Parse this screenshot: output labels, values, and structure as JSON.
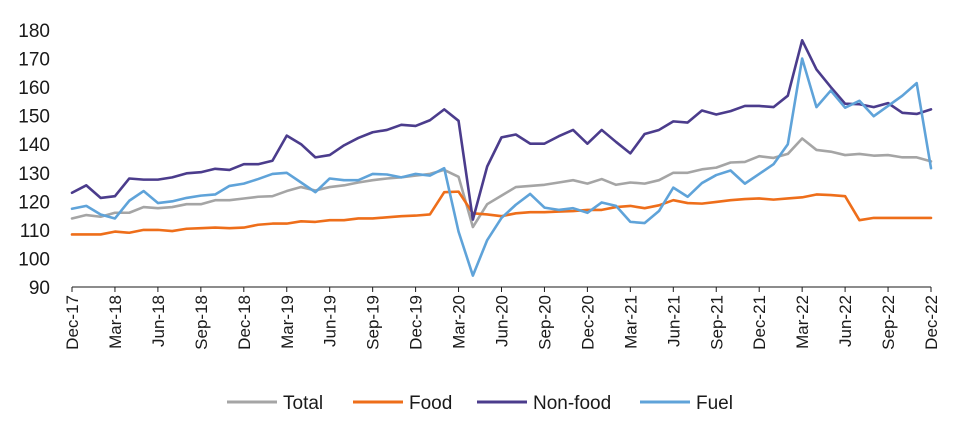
{
  "chart_data": {
    "type": "line",
    "title": "",
    "xlabel": "",
    "ylabel": "",
    "ylim": [
      90,
      180
    ],
    "yticks": [
      90,
      100,
      110,
      120,
      130,
      140,
      150,
      160,
      170,
      180
    ],
    "grid": false,
    "legend_position": "bottom",
    "x": [
      "Dec-17",
      "Jan-18",
      "Feb-18",
      "Mar-18",
      "Apr-18",
      "May-18",
      "Jun-18",
      "Jul-18",
      "Aug-18",
      "Sep-18",
      "Oct-18",
      "Nov-18",
      "Dec-18",
      "Jan-19",
      "Feb-19",
      "Mar-19",
      "Apr-19",
      "May-19",
      "Jun-19",
      "Jul-19",
      "Aug-19",
      "Sep-19",
      "Oct-19",
      "Nov-19",
      "Dec-19",
      "Jan-20",
      "Feb-20",
      "Mar-20",
      "Apr-20",
      "May-20",
      "Jun-20",
      "Jul-20",
      "Aug-20",
      "Sep-20",
      "Oct-20",
      "Nov-20",
      "Dec-20",
      "Jan-21",
      "Feb-21",
      "Mar-21",
      "Apr-21",
      "May-21",
      "Jun-21",
      "Jul-21",
      "Aug-21",
      "Sep-21",
      "Oct-21",
      "Nov-21",
      "Dec-21",
      "Jan-22",
      "Feb-22",
      "Mar-22",
      "Apr-22",
      "May-22",
      "Jun-22",
      "Jul-22",
      "Aug-22",
      "Sep-22",
      "Oct-22",
      "Nov-22",
      "Dec-22"
    ],
    "x_tick_labels": [
      "Dec-17",
      "Mar-18",
      "Jun-18",
      "Sep-18",
      "Dec-18",
      "Mar-19",
      "Jun-19",
      "Sep-19",
      "Dec-19",
      "Mar-20",
      "Jun-20",
      "Sep-20",
      "Dec-20",
      "Mar-21",
      "Jun-21",
      "Sep-21",
      "Dec-21",
      "Mar-22",
      "Jun-22",
      "Sep-22",
      "Dec-22"
    ],
    "series": [
      {
        "name": "Total",
        "color": "#a5a5a5",
        "values": [
          114,
          115.2,
          114.6,
          116,
          116,
          118,
          117.6,
          118,
          119,
          119,
          120.4,
          120.4,
          121,
          121.6,
          121.8,
          123.6,
          125,
          123.8,
          125,
          125.6,
          126.6,
          127.4,
          128,
          128.4,
          129,
          129.6,
          131,
          128.6,
          111,
          119,
          122,
          125,
          125.4,
          125.8,
          126.6,
          127.4,
          126.2,
          127.8,
          125.8,
          126.6,
          126.2,
          127.4,
          130,
          130,
          131.2,
          131.8,
          133.6,
          133.8,
          135.8,
          135.2,
          136.6,
          142,
          138,
          137.4,
          136.2,
          136.6,
          136,
          136.2,
          135.4,
          135.4,
          134
        ]
      },
      {
        "name": "Food",
        "color": "#ee6e1a",
        "values": [
          108.4,
          108.4,
          108.4,
          109.4,
          109,
          110,
          110,
          109.6,
          110.4,
          110.6,
          110.8,
          110.6,
          110.8,
          111.8,
          112.2,
          112.2,
          113,
          112.8,
          113.4,
          113.4,
          114,
          114,
          114.4,
          114.8,
          115,
          115.4,
          123.2,
          123.4,
          115.8,
          115.4,
          114.8,
          115.8,
          116.2,
          116.2,
          116.4,
          116.6,
          117,
          117,
          118,
          118.4,
          117.6,
          118.6,
          120.4,
          119.4,
          119.2,
          119.8,
          120.4,
          120.8,
          121,
          120.6,
          121,
          121.4,
          122.4,
          122.2,
          121.8,
          113.4,
          114.2,
          114.2,
          114.2,
          114.2,
          114.2
        ]
      },
      {
        "name": "Non-food",
        "color": "#4b3c8c",
        "values": [
          123,
          125.6,
          121.2,
          121.8,
          128,
          127.6,
          127.6,
          128.4,
          129.8,
          130.2,
          131.4,
          131,
          133,
          133,
          134.2,
          143,
          140,
          135.4,
          136.2,
          139.6,
          142.2,
          144.2,
          145,
          146.8,
          146.4,
          148.4,
          152.2,
          148.2,
          113.6,
          132.2,
          142.4,
          143.4,
          140.2,
          140.2,
          142.8,
          145,
          140.2,
          145,
          140.8,
          136.8,
          143.6,
          145,
          148,
          147.6,
          151.8,
          150.4,
          151.6,
          153.4,
          153.4,
          153,
          157,
          176.4,
          166.2,
          160,
          154.2,
          154,
          153,
          154.4,
          151,
          150.6,
          152.2
        ]
      },
      {
        "name": "Fuel",
        "color": "#5fa3d9",
        "values": [
          117.4,
          118.4,
          115.4,
          114,
          120.2,
          123.6,
          119.4,
          120,
          121.2,
          122,
          122.4,
          125.4,
          126.2,
          127.8,
          129.6,
          130,
          126.6,
          123.2,
          128,
          127.4,
          127.4,
          129.6,
          129.4,
          128.4,
          129.6,
          129,
          131.6,
          109.4,
          94,
          106.4,
          114.2,
          118.8,
          122.6,
          117.8,
          117,
          117.6,
          116,
          119.6,
          118.4,
          112.8,
          112.4,
          116.6,
          124.8,
          121.6,
          126.4,
          129.2,
          130.8,
          126.2,
          129.6,
          133,
          140,
          170,
          153,
          158.8,
          152.8,
          155.2,
          149.8,
          153.4,
          157,
          161.4,
          131.6
        ]
      }
    ]
  }
}
